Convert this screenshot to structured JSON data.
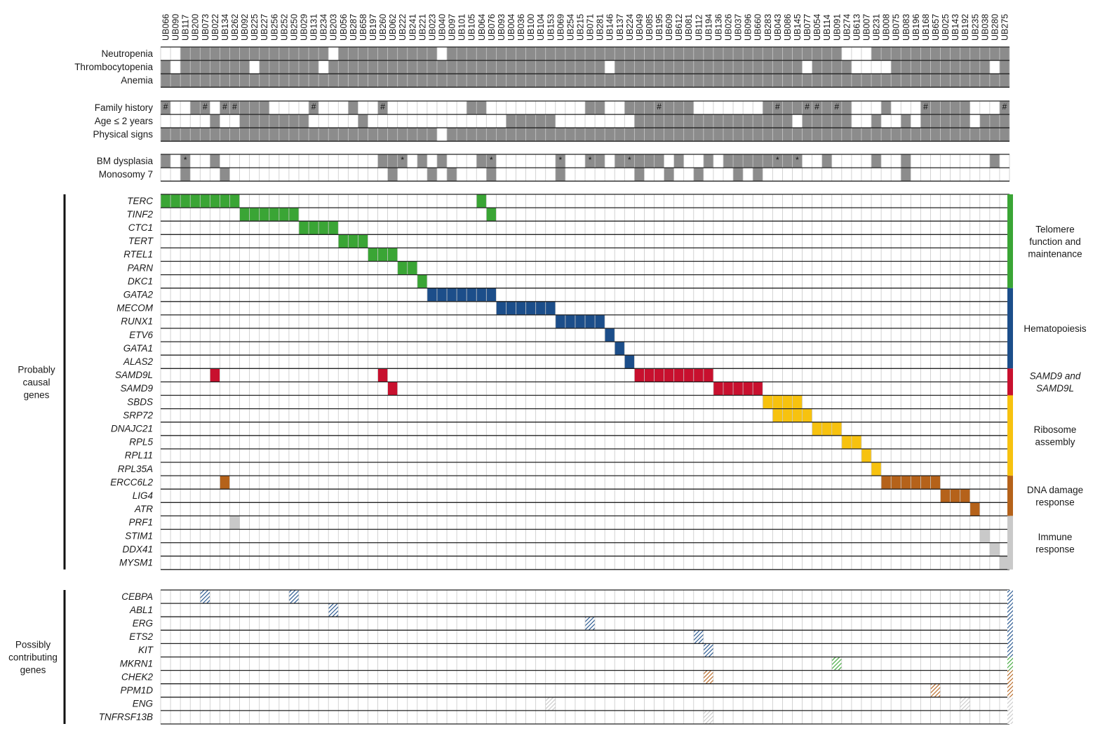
{
  "chart_data": {
    "type": "heatmap",
    "patients": [
      "UB066",
      "UB090",
      "UB117",
      "UB200",
      "UB073",
      "UB022",
      "UB134",
      "UB262",
      "UB092",
      "UB225",
      "UB227",
      "UB256",
      "UB252",
      "UB250",
      "UB029",
      "UB131",
      "UB234",
      "UB203",
      "UB056",
      "UB287",
      "UB658",
      "UB197",
      "UB260",
      "UB062",
      "UB222",
      "UB241",
      "UB221",
      "UB023",
      "UB040",
      "UB097",
      "UB101",
      "UB105",
      "UB064",
      "UB076",
      "UB093",
      "UB004",
      "UB036",
      "UB100",
      "UB104",
      "UB153",
      "UB069",
      "UB254",
      "UB215",
      "UB071",
      "UB281",
      "UB146",
      "UB137",
      "UB224",
      "UB049",
      "UB085",
      "UB195",
      "UB609",
      "UB612",
      "UB081",
      "UB112",
      "UB194",
      "UB136",
      "UB026",
      "UB037",
      "UB096",
      "UB660",
      "UB283",
      "UB043",
      "UB086",
      "UB145",
      "UB077",
      "UB054",
      "UB114",
      "UB091",
      "UB274",
      "UB613",
      "UB007",
      "UB231",
      "UB008",
      "UB075",
      "UB083",
      "UB196",
      "UB168",
      "UB657",
      "UB025",
      "UB143",
      "UB192",
      "UB235",
      "UB038",
      "UB280",
      "UB275"
    ],
    "clinical_groups": [
      {
        "rows": [
          "Neutropenia",
          "Thrombocytopenia",
          "Anemia"
        ],
        "filled": [
          [
            2,
            3,
            4,
            5,
            6,
            7,
            8,
            9,
            10,
            11,
            12,
            13,
            14,
            15,
            16,
            18,
            19,
            20,
            21,
            22,
            23,
            24,
            25,
            26,
            27,
            29,
            30,
            31,
            32,
            33,
            34,
            35,
            36,
            37,
            38,
            39,
            40,
            41,
            42,
            43,
            44,
            45,
            46,
            47,
            48,
            49,
            50,
            51,
            52,
            53,
            54,
            55,
            56,
            57,
            58,
            59,
            60,
            61,
            62,
            63,
            64,
            65,
            66,
            67,
            68,
            72,
            73,
            74,
            75,
            76,
            77,
            78,
            79,
            80,
            81,
            82,
            83,
            84,
            85
          ],
          [
            0,
            2,
            3,
            4,
            5,
            6,
            7,
            8,
            10,
            11,
            12,
            13,
            14,
            15,
            17,
            18,
            19,
            20,
            21,
            22,
            23,
            24,
            25,
            26,
            27,
            28,
            29,
            30,
            31,
            32,
            33,
            34,
            35,
            36,
            37,
            38,
            39,
            40,
            41,
            42,
            43,
            44,
            46,
            47,
            48,
            49,
            50,
            51,
            52,
            53,
            54,
            55,
            56,
            57,
            58,
            59,
            60,
            61,
            62,
            63,
            64,
            66,
            67,
            68,
            69,
            74,
            75,
            76,
            77,
            78,
            79,
            80,
            81,
            82,
            83,
            85
          ],
          [
            0,
            1,
            2,
            3,
            4,
            5,
            6,
            7,
            8,
            9,
            10,
            11,
            12,
            13,
            14,
            15,
            16,
            17,
            18,
            19,
            20,
            21,
            22,
            23,
            24,
            25,
            26,
            27,
            28,
            29,
            30,
            31,
            32,
            33,
            34,
            35,
            36,
            37,
            38,
            39,
            40,
            41,
            42,
            43,
            44,
            45,
            46,
            47,
            48,
            49,
            50,
            51,
            52,
            53,
            54,
            55,
            56,
            57,
            58,
            59,
            60,
            61,
            62,
            63,
            64,
            65,
            66,
            67,
            68,
            69,
            70,
            71,
            72,
            73,
            74,
            75,
            76,
            77,
            78,
            79,
            80,
            81,
            82,
            83,
            84,
            85
          ]
        ],
        "marks": [
          [],
          [],
          []
        ]
      },
      {
        "rows": [
          "Family history",
          "Age ≤ 2 years",
          "Physical signs"
        ],
        "filled": [
          [
            0,
            3,
            4,
            6,
            7,
            8,
            9,
            10,
            15,
            19,
            22,
            31,
            32,
            43,
            44,
            47,
            48,
            49,
            50,
            51,
            52,
            53,
            61,
            62,
            63,
            64,
            65,
            66,
            67,
            68,
            69,
            73,
            77,
            78,
            79,
            80,
            81,
            85
          ],
          [
            5,
            8,
            9,
            10,
            11,
            12,
            13,
            14,
            20,
            35,
            36,
            37,
            38,
            39,
            48,
            49,
            50,
            51,
            52,
            53,
            54,
            55,
            56,
            57,
            58,
            59,
            60,
            61,
            62,
            63,
            65,
            66,
            67,
            68,
            69,
            72,
            75,
            77,
            78,
            79,
            80,
            81,
            83,
            84,
            85
          ],
          [
            0,
            1,
            2,
            3,
            4,
            5,
            6,
            7,
            8,
            9,
            10,
            11,
            12,
            13,
            14,
            15,
            16,
            17,
            18,
            19,
            20,
            21,
            22,
            23,
            24,
            25,
            26,
            27,
            29,
            30,
            31,
            32,
            33,
            34,
            35,
            36,
            37,
            38,
            39,
            40,
            41,
            42,
            43,
            44,
            45,
            46,
            47,
            48,
            49,
            50,
            51,
            52,
            53,
            54,
            55,
            56,
            57,
            58,
            59,
            60,
            61,
            62,
            63,
            64,
            65,
            66,
            67,
            68,
            69,
            70,
            71,
            72,
            73,
            74,
            75,
            76,
            77,
            78,
            79,
            80,
            81,
            82,
            83,
            84,
            85
          ]
        ],
        "marks": [
          [
            {
              "col": 0,
              "symbol": "#"
            },
            {
              "col": 4,
              "symbol": "#"
            },
            {
              "col": 6,
              "symbol": "#"
            },
            {
              "col": 7,
              "symbol": "#"
            },
            {
              "col": 15,
              "symbol": "#"
            },
            {
              "col": 22,
              "symbol": "#"
            },
            {
              "col": 50,
              "symbol": "#"
            },
            {
              "col": 62,
              "symbol": "#"
            },
            {
              "col": 65,
              "symbol": "#"
            },
            {
              "col": 66,
              "symbol": "#"
            },
            {
              "col": 68,
              "symbol": "#"
            },
            {
              "col": 77,
              "symbol": "#"
            },
            {
              "col": 85,
              "symbol": "#"
            }
          ],
          [],
          []
        ]
      },
      {
        "rows": [
          "BM dysplasia",
          "Monosomy 7"
        ],
        "filled": [
          [
            0,
            2,
            5,
            22,
            23,
            24,
            26,
            28,
            32,
            33,
            40,
            43,
            44,
            46,
            47,
            48,
            49,
            50,
            52,
            55,
            57,
            58,
            59,
            60,
            61,
            62,
            63,
            64,
            67,
            72,
            75,
            84
          ],
          [
            2,
            6,
            23,
            27,
            29,
            33,
            40,
            48,
            51,
            54,
            58,
            60,
            75
          ]
        ],
        "marks": [
          [
            {
              "col": 2,
              "symbol": "*"
            },
            {
              "col": 24,
              "symbol": "*"
            },
            {
              "col": 33,
              "symbol": "*"
            },
            {
              "col": 40,
              "symbol": "*"
            },
            {
              "col": 43,
              "symbol": "*"
            },
            {
              "col": 47,
              "symbol": "*"
            },
            {
              "col": 62,
              "symbol": "*"
            },
            {
              "col": 64,
              "symbol": "*"
            }
          ],
          []
        ]
      }
    ],
    "causal": {
      "label": "Probably causal genes",
      "genes": [
        {
          "name": "TERC",
          "cells": [
            0,
            1,
            2,
            3,
            4,
            5,
            6,
            7,
            32
          ],
          "color": "#3aa535"
        },
        {
          "name": "TINF2",
          "cells": [
            8,
            9,
            10,
            11,
            12,
            13,
            33
          ],
          "color": "#3aa535"
        },
        {
          "name": "CTC1",
          "cells": [
            14,
            15,
            16,
            17
          ],
          "color": "#3aa535"
        },
        {
          "name": "TERT",
          "cells": [
            18,
            19,
            20
          ],
          "color": "#3aa535"
        },
        {
          "name": "RTEL1",
          "cells": [
            21,
            22,
            23
          ],
          "color": "#3aa535"
        },
        {
          "name": "PARN",
          "cells": [
            24,
            25
          ],
          "color": "#3aa535"
        },
        {
          "name": "DKC1",
          "cells": [
            26
          ],
          "color": "#3aa535"
        },
        {
          "name": "GATA2",
          "cells": [
            27,
            28,
            29,
            30,
            31,
            32,
            33
          ],
          "color": "#1c4e8a"
        },
        {
          "name": "MECOM",
          "cells": [
            34,
            35,
            36,
            37,
            38,
            39
          ],
          "color": "#1c4e8a"
        },
        {
          "name": "RUNX1",
          "cells": [
            40,
            41,
            42,
            43,
            44
          ],
          "color": "#1c4e8a"
        },
        {
          "name": "ETV6",
          "cells": [
            45
          ],
          "color": "#1c4e8a"
        },
        {
          "name": "GATA1",
          "cells": [
            46
          ],
          "color": "#1c4e8a"
        },
        {
          "name": "ALAS2",
          "cells": [
            47
          ],
          "color": "#1c4e8a"
        },
        {
          "name": "SAMD9L",
          "cells": [
            5,
            22,
            48,
            49,
            50,
            51,
            52,
            53,
            54,
            55
          ],
          "color": "#c8102e"
        },
        {
          "name": "SAMD9",
          "cells": [
            23,
            56,
            57,
            58,
            59,
            60
          ],
          "color": "#c8102e"
        },
        {
          "name": "SBDS",
          "cells": [
            61,
            62,
            63,
            64
          ],
          "color": "#f7c20f"
        },
        {
          "name": "SRP72",
          "cells": [
            62,
            63,
            64,
            65
          ],
          "color": "#f7c20f"
        },
        {
          "name": "DNAJC21",
          "cells": [
            66,
            67,
            68
          ],
          "color": "#f7c20f"
        },
        {
          "name": "RPL5",
          "cells": [
            69,
            70
          ],
          "color": "#f7c20f"
        },
        {
          "name": "RPL11",
          "cells": [
            71
          ],
          "color": "#f7c20f"
        },
        {
          "name": "RPL35A",
          "cells": [
            72
          ],
          "color": "#f7c20f"
        },
        {
          "name": "ERCC6L2",
          "cells": [
            6,
            73,
            74,
            75,
            76,
            77,
            78
          ],
          "color": "#b5621a"
        },
        {
          "name": "LIG4",
          "cells": [
            79,
            80,
            81
          ],
          "color": "#b5621a"
        },
        {
          "name": "ATR",
          "cells": [
            82
          ],
          "color": "#b5621a"
        },
        {
          "name": "PRF1",
          "cells": [
            7
          ],
          "color": "#c9c9c9"
        },
        {
          "name": "STIM1",
          "cells": [
            83
          ],
          "color": "#c9c9c9"
        },
        {
          "name": "DDX41",
          "cells": [
            84
          ],
          "color": "#c9c9c9"
        },
        {
          "name": "MYSM1",
          "cells": [
            85
          ],
          "color": "#c9c9c9"
        }
      ]
    },
    "contributing": {
      "label": "Possibly contributing genes",
      "genes": [
        {
          "name": "CEBPA",
          "cells": [
            4,
            13
          ],
          "color": "#1c4e8a"
        },
        {
          "name": "ABL1",
          "cells": [
            17
          ],
          "color": "#1c4e8a"
        },
        {
          "name": "ERG",
          "cells": [
            43
          ],
          "color": "#1c4e8a"
        },
        {
          "name": "ETS2",
          "cells": [
            54
          ],
          "color": "#1c4e8a"
        },
        {
          "name": "KIT",
          "cells": [
            55
          ],
          "color": "#1c4e8a"
        },
        {
          "name": "MKRN1",
          "cells": [
            68
          ],
          "color": "#3aa535"
        },
        {
          "name": "CHEK2",
          "cells": [
            55
          ],
          "color": "#b5621a"
        },
        {
          "name": "PPM1D",
          "cells": [
            78
          ],
          "color": "#b5621a"
        },
        {
          "name": "ENG",
          "cells": [
            39,
            81
          ],
          "color": "#c9c9c9"
        },
        {
          "name": "TNFRSF13B",
          "cells": [
            55
          ],
          "color": "#c9c9c9"
        }
      ]
    },
    "categories": [
      {
        "label": "Telomere function and maintenance",
        "lines": [
          "Telomere",
          "function and",
          "maintenance"
        ],
        "italic": [
          false,
          false,
          false
        ],
        "color": "#3aa535",
        "start_row": 0,
        "end_row": 6
      },
      {
        "label": "Hematopoiesis",
        "lines": [
          "Hematopoiesis"
        ],
        "italic": [
          false
        ],
        "color": "#1c4e8a",
        "start_row": 7,
        "end_row": 12
      },
      {
        "label": "SAMD9 and SAMD9L",
        "lines": [
          "SAMD9 and",
          "SAMD9L"
        ],
        "italic": [
          true,
          true
        ],
        "color": "#c8102e",
        "start_row": 13,
        "end_row": 14
      },
      {
        "label": "Ribosome assembly",
        "lines": [
          "Ribosome",
          "assembly"
        ],
        "italic": [
          false,
          false
        ],
        "color": "#f7c20f",
        "start_row": 15,
        "end_row": 20
      },
      {
        "label": "DNA damage response",
        "lines": [
          "DNA damage",
          "response"
        ],
        "italic": [
          false,
          false
        ],
        "color": "#b5621a",
        "start_row": 21,
        "end_row": 23
      },
      {
        "label": "Immune response",
        "lines": [
          "Immune",
          "response"
        ],
        "italic": [
          false,
          false
        ],
        "color": "#c9c9c9",
        "start_row": 24,
        "end_row": 27
      }
    ],
    "contributing_side_colors": [
      "#1c4e8a",
      "#1c4e8a",
      "#1c4e8a",
      "#1c4e8a",
      "#1c4e8a",
      "#3aa535",
      "#b5621a",
      "#b5621a",
      "#c9c9c9",
      "#c9c9c9"
    ],
    "clinical_fill_color": "#8c8c8c",
    "grid_line_color": "#c8c8c8",
    "row_border_color": "#222222"
  }
}
